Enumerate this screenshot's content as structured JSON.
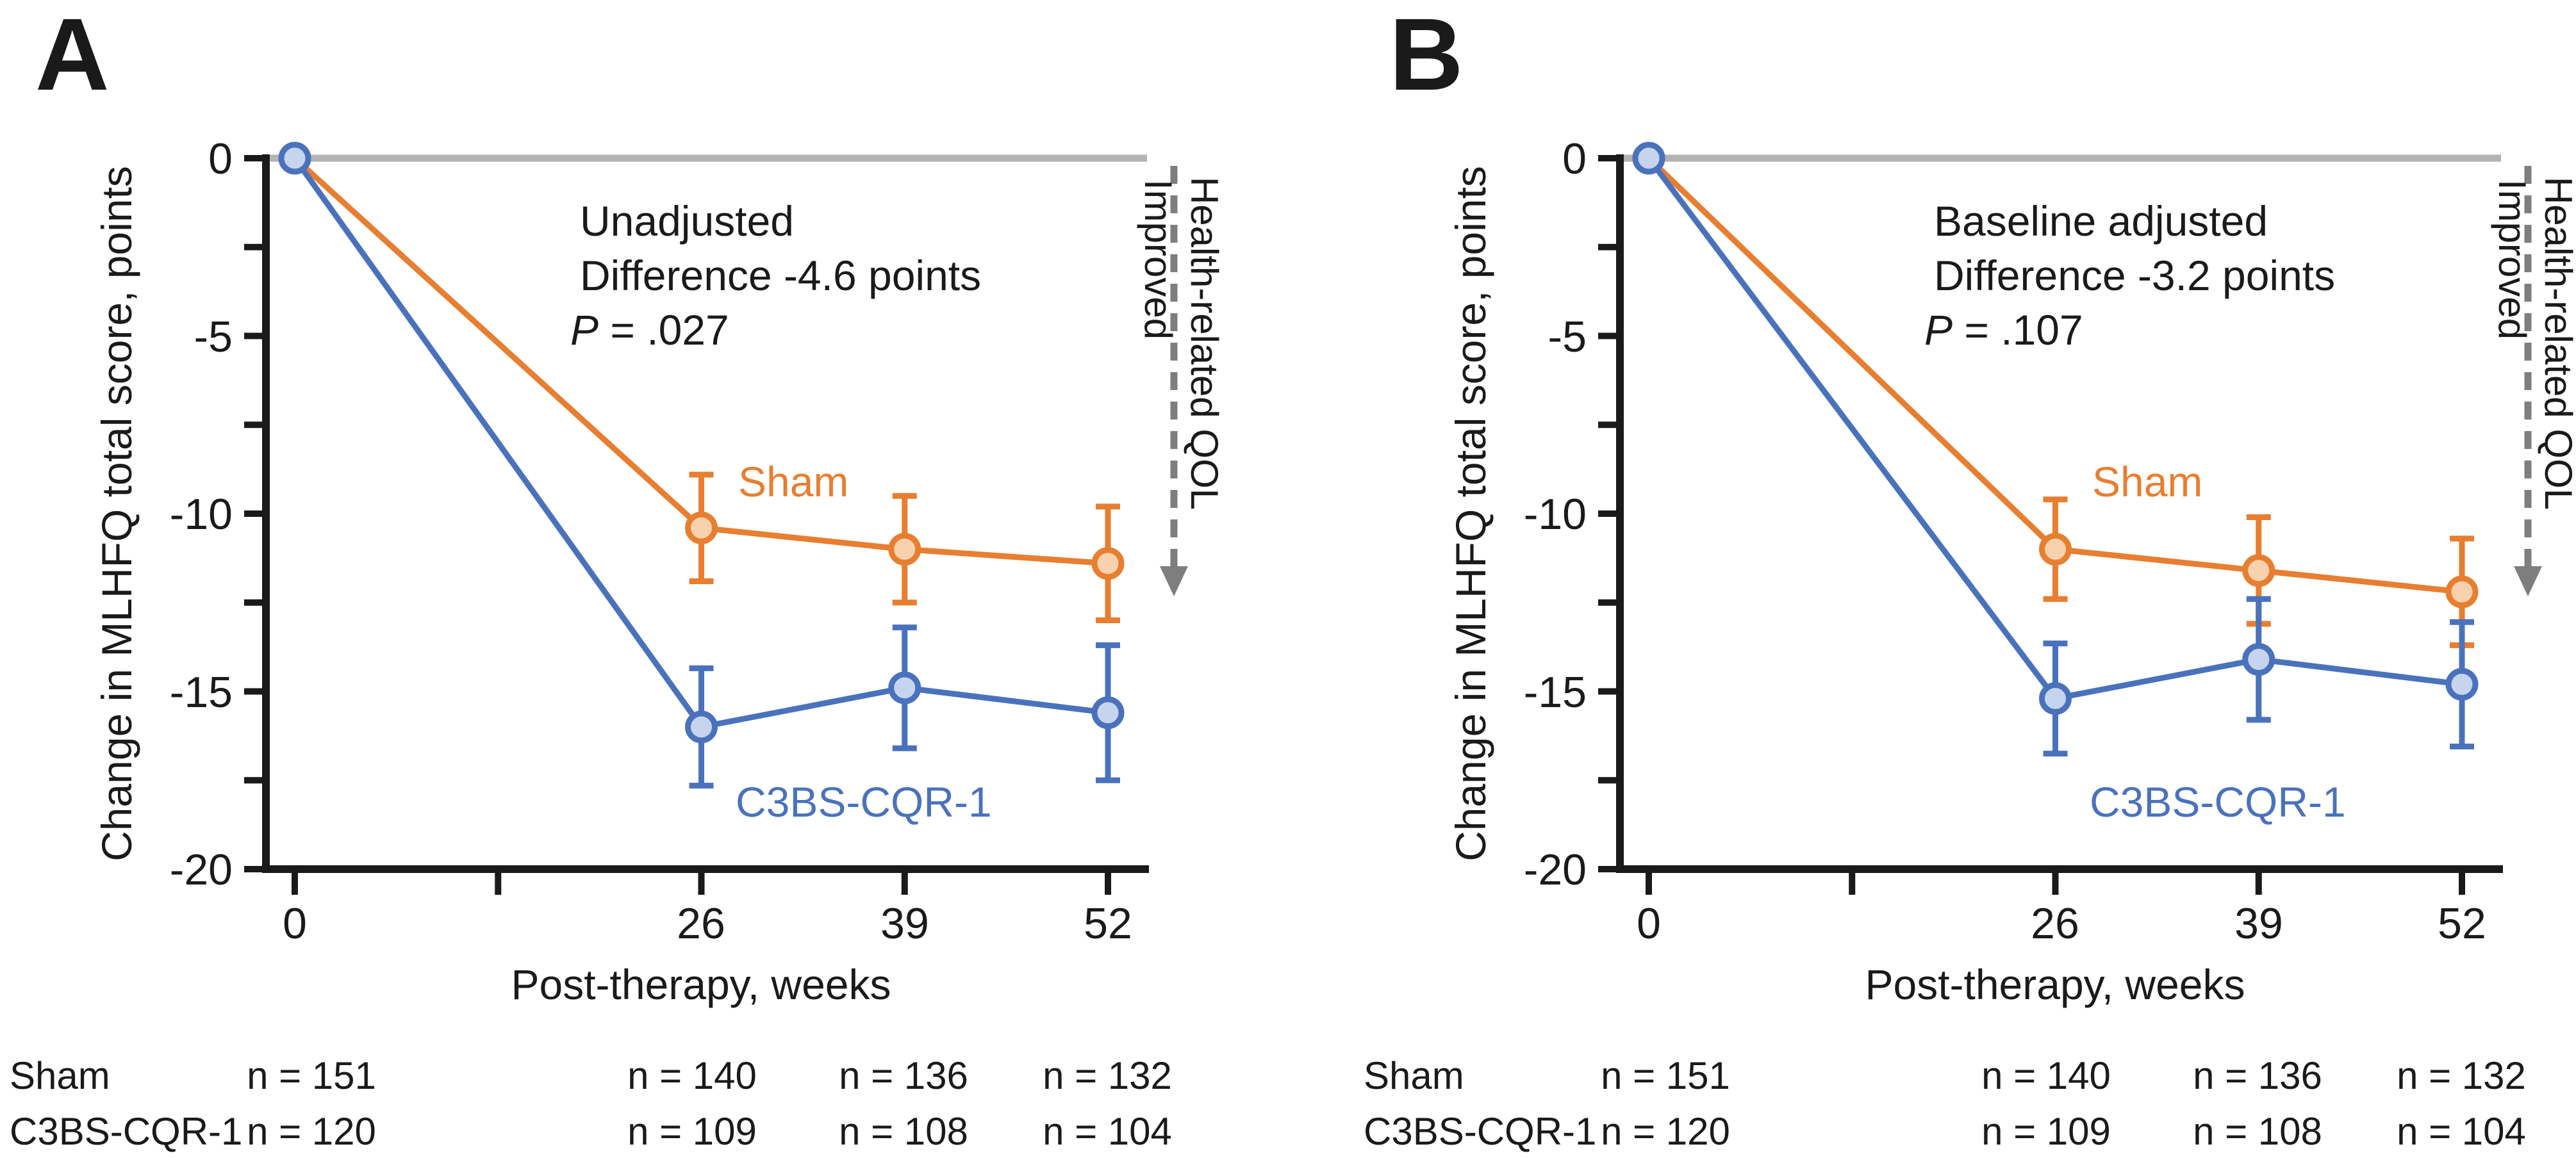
{
  "colors": {
    "axis": "#1a1a1a",
    "zero_line": "#b3b3b3",
    "arrow": "#7e7e7e",
    "background": "#ffffff",
    "sham": "#e87e30",
    "sham_fill": "#f8d2af",
    "c3bs": "#4a72bc",
    "c3bs_fill": "#c6d4ee"
  },
  "chart_data": [
    {
      "panel_letter": "A",
      "type": "line",
      "xlabel": "Post-therapy, weeks",
      "ylabel": "Change in MLHFQ total score, points",
      "x_weeks": [
        0,
        26,
        39,
        52
      ],
      "x_ticks_weeks": [
        0,
        13,
        26,
        39,
        52
      ],
      "x_tick_labels_shown": [
        "0",
        "26",
        "39",
        "52"
      ],
      "y_ticks": [
        0,
        -5,
        -10,
        -15,
        -20
      ],
      "y_tick_labels": [
        "0",
        "-5",
        "-10",
        "-15",
        "-20"
      ],
      "y_minor_ticks": [
        -2.5,
        -7.5,
        -12.5,
        -17.5
      ],
      "ylim": [
        -20,
        0
      ],
      "xlim_weeks": [
        0,
        52
      ],
      "grid": "off",
      "annotation": {
        "line1": "Unadjusted",
        "line2": "Difference -4.6 points",
        "p_italic": "P",
        "p_rest": " = .027"
      },
      "right_labels": {
        "improved": "Improved",
        "qol": "Health-related QOL"
      },
      "series": [
        {
          "name": "Sham",
          "color": "#e87e30",
          "marker_fill": "#f8d2af",
          "values": [
            0,
            -10.4,
            -11.0,
            -11.4
          ],
          "err": [
            0,
            1.5,
            1.5,
            1.6
          ]
        },
        {
          "name": "C3BS-CQR-1",
          "color": "#4a72bc",
          "marker_fill": "#c6d4ee",
          "values": [
            0,
            -16.0,
            -14.9,
            -15.6
          ],
          "err": [
            0,
            1.65,
            1.7,
            1.9
          ]
        }
      ],
      "n_table": [
        {
          "label": "Sham",
          "values": [
            "n = 151",
            "n = 140",
            "n = 136",
            "n = 132"
          ]
        },
        {
          "label": "C3BS-CQR-1",
          "values": [
            "n = 120",
            "n = 109",
            "n = 108",
            "n = 104"
          ]
        }
      ]
    },
    {
      "panel_letter": "B",
      "type": "line",
      "xlabel": "Post-therapy, weeks",
      "ylabel": "Change in MLHFQ total score, points",
      "x_weeks": [
        0,
        26,
        39,
        52
      ],
      "x_ticks_weeks": [
        0,
        13,
        26,
        39,
        52
      ],
      "x_tick_labels_shown": [
        "0",
        "26",
        "39",
        "52"
      ],
      "y_ticks": [
        0,
        -5,
        -10,
        -15,
        -20
      ],
      "y_tick_labels": [
        "0",
        "-5",
        "-10",
        "-15",
        "-20"
      ],
      "y_minor_ticks": [
        -2.5,
        -7.5,
        -12.5,
        -17.5
      ],
      "ylim": [
        -20,
        0
      ],
      "xlim_weeks": [
        0,
        52
      ],
      "grid": "off",
      "annotation": {
        "line1": "Baseline adjusted",
        "line2": "Difference -3.2 points",
        "p_italic": "P",
        "p_rest": " = .107"
      },
      "right_labels": {
        "improved": "Improved",
        "qol": "Health-related QOL"
      },
      "series": [
        {
          "name": "Sham",
          "color": "#e87e30",
          "marker_fill": "#f8d2af",
          "values": [
            0,
            -11.0,
            -11.6,
            -12.2
          ],
          "err": [
            0,
            1.4,
            1.5,
            1.5
          ]
        },
        {
          "name": "C3BS-CQR-1",
          "color": "#4a72bc",
          "marker_fill": "#c6d4ee",
          "values": [
            0,
            -15.2,
            -14.1,
            -14.8
          ],
          "err": [
            0,
            1.55,
            1.7,
            1.75
          ]
        }
      ],
      "n_table": [
        {
          "label": "Sham",
          "values": [
            "n = 151",
            "n = 140",
            "n = 136",
            "n = 132"
          ]
        },
        {
          "label": "C3BS-CQR-1",
          "values": [
            "n = 120",
            "n = 109",
            "n = 108",
            "n = 104"
          ]
        }
      ]
    }
  ]
}
